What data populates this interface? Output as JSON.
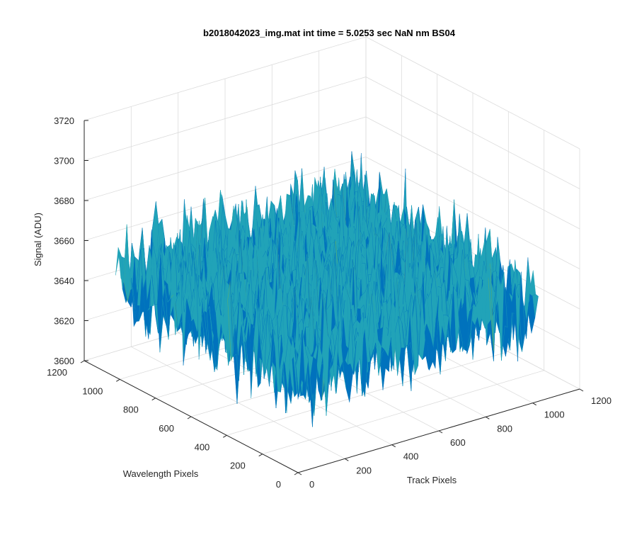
{
  "chart_data": {
    "type": "surface",
    "title": "b2018042023_img.mat int time = 5.0253 sec  NaN nm BS04",
    "xlabel": "Track Pixels",
    "ylabel": "Wavelength Pixels",
    "zlabel": "Signal (ADU)",
    "xlim": [
      0,
      1200
    ],
    "ylim": [
      0,
      1200
    ],
    "zlim": [
      3600,
      3720
    ],
    "x_ticks": [
      "0",
      "200",
      "400",
      "600",
      "800",
      "1000",
      "1200"
    ],
    "y_ticks": [
      "0",
      "200",
      "400",
      "600",
      "800",
      "1000",
      "1200"
    ],
    "z_ticks": [
      "3600",
      "3620",
      "3640",
      "3660",
      "3680",
      "3700",
      "3720"
    ],
    "data_extent": {
      "x": [
        0,
        1024
      ],
      "y": [
        0,
        1024
      ]
    },
    "signal_mean": 3650,
    "signal_range": [
      3620,
      3710
    ],
    "grid": true,
    "colors": {
      "low": "#0072BD",
      "mid": "#21A3B8",
      "high": "#EDB120",
      "accent": "#7AB648"
    }
  }
}
